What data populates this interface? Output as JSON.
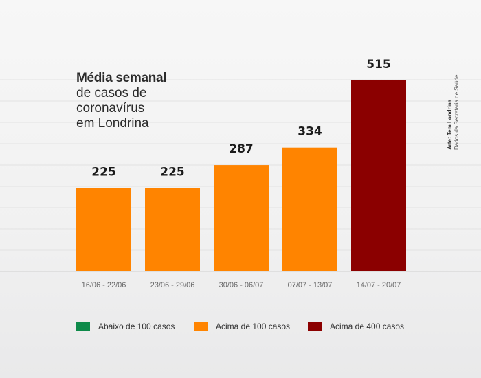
{
  "title": {
    "strong": "Média semanal",
    "lines": [
      "de casos de",
      "coronavírus",
      "em Londrina"
    ]
  },
  "credits": {
    "main": "Arte: Tem Londrina",
    "sub": "Dados da Secretaria de Saúde"
  },
  "legend": [
    {
      "label": "Abaixo de 100 casos",
      "color": "#0e8a4a"
    },
    {
      "label": "Acima de 100 casos",
      "color": "#ff8400"
    },
    {
      "label": "Acima de 400 casos",
      "color": "#8b0000"
    }
  ],
  "chart_data": {
    "type": "bar",
    "categories": [
      "16/06 - 22/06",
      "23/06 - 29/06",
      "30/06 - 06/07",
      "07/07 - 13/07",
      "14/07 - 20/07"
    ],
    "values": [
      225,
      225,
      287,
      334,
      515
    ],
    "colors": [
      "#ff8400",
      "#ff8400",
      "#ff8400",
      "#ff8400",
      "#8b0000"
    ],
    "ylim": [
      0,
      600
    ],
    "grid": true
  }
}
